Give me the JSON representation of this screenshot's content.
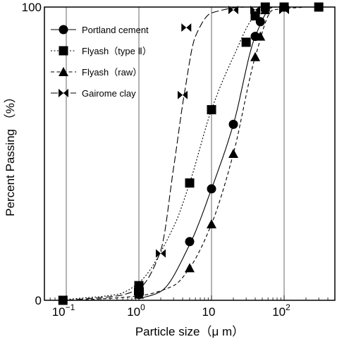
{
  "chart_data": {
    "type": "scatter",
    "xlabel": "Particle size（μ m）",
    "ylabel": "Percent Passing （%）",
    "x_scale": "log",
    "xlim": [
      0.05,
      500
    ],
    "ylim": [
      0,
      100
    ],
    "grid": "vertical only",
    "legend_position": "top-left",
    "x_ticks": [
      {
        "value": 0.1,
        "base": "10",
        "exp": "−1"
      },
      {
        "value": 1,
        "base": "10",
        "exp": "0"
      },
      {
        "value": 10,
        "base": "10",
        "exp": ""
      },
      {
        "value": 100,
        "base": "10",
        "exp": "2"
      }
    ],
    "y_ticks": [
      {
        "value": 0,
        "label": "0"
      },
      {
        "value": 100,
        "label": "100"
      }
    ],
    "series": [
      {
        "name": "Portland cement",
        "marker": "circle",
        "line_style": "solid",
        "points": [
          [
            1,
            2
          ],
          [
            5,
            20
          ],
          [
            10,
            38
          ],
          [
            20,
            60
          ],
          [
            40,
            90
          ],
          [
            47,
            95
          ]
        ]
      },
      {
        "name": "Flyash（type Ⅱ）",
        "marker": "square",
        "line_style": "dotted",
        "points": [
          [
            0.09,
            0
          ],
          [
            1,
            5
          ],
          [
            5,
            40
          ],
          [
            10,
            65
          ],
          [
            30,
            88
          ],
          [
            40,
            97
          ],
          [
            55,
            100
          ],
          [
            100,
            100
          ],
          [
            300,
            100
          ]
        ]
      },
      {
        "name": "Flyash（raw）",
        "marker": "triangle",
        "line_style": "dashed",
        "points": [
          [
            1,
            2
          ],
          [
            5,
            11
          ],
          [
            10,
            26
          ],
          [
            20,
            50
          ],
          [
            40,
            83
          ],
          [
            47,
            90
          ],
          [
            55,
            99
          ]
        ]
      },
      {
        "name": "Gairome clay",
        "marker": "bowtie",
        "line_style": "long-dash",
        "points": [
          [
            1,
            3
          ],
          [
            2,
            16
          ],
          [
            4,
            70
          ],
          [
            4.5,
            93
          ],
          [
            20,
            99
          ],
          [
            40,
            99
          ],
          [
            100,
            99
          ]
        ]
      }
    ]
  }
}
